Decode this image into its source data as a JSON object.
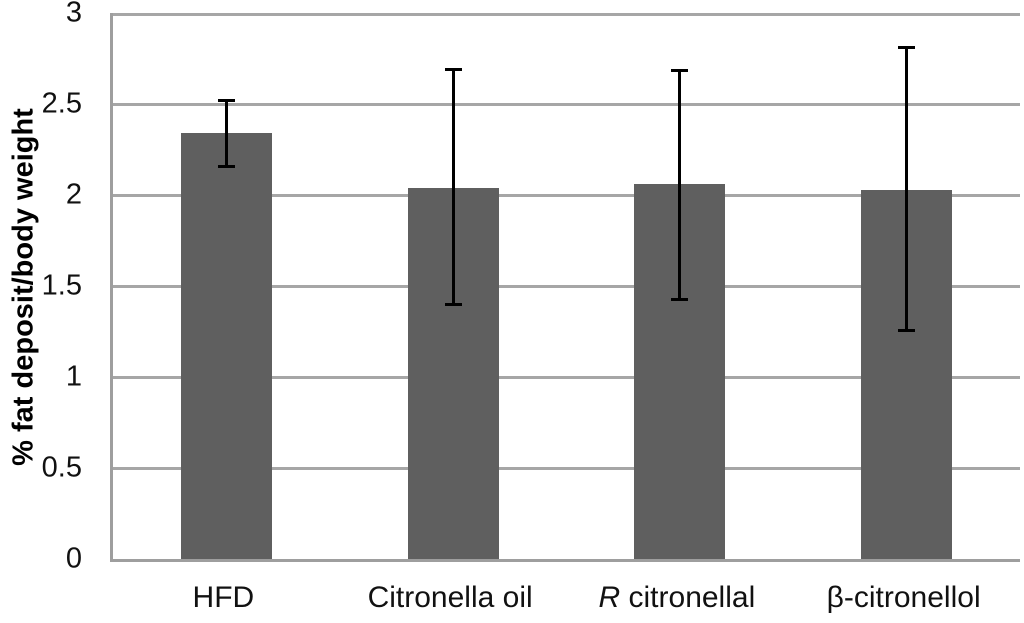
{
  "chart_data": {
    "type": "bar",
    "title": "",
    "xlabel": "",
    "ylabel": "% fat deposit/body weight",
    "ylim": [
      0,
      3
    ],
    "ytick_labels": [
      "0",
      "0.5",
      "1",
      "1.5",
      "2",
      "2.5",
      "3"
    ],
    "ytick_values": [
      0,
      0.5,
      1,
      1.5,
      2,
      2.5,
      3
    ],
    "grid": "horizontal",
    "legend": false,
    "categories": [
      "HFD",
      "Citronella oil",
      "R citronellal",
      "β-citronellol"
    ],
    "italic_first_word": [
      false,
      false,
      true,
      false
    ],
    "values": [
      2.34,
      2.04,
      2.06,
      2.03
    ],
    "error_bars": [
      {
        "upper": 2.53,
        "lower": 2.15
      },
      {
        "upper": 2.7,
        "lower": 1.39
      },
      {
        "upper": 2.69,
        "lower": 1.42
      },
      {
        "upper": 2.82,
        "lower": 1.25
      }
    ],
    "colors": {
      "bar_fill": "#5f5f5f",
      "gridline": "#a6a6a6",
      "axis_line": "#9e9e9e",
      "error_bar": "#000000",
      "text": "#111111"
    }
  }
}
